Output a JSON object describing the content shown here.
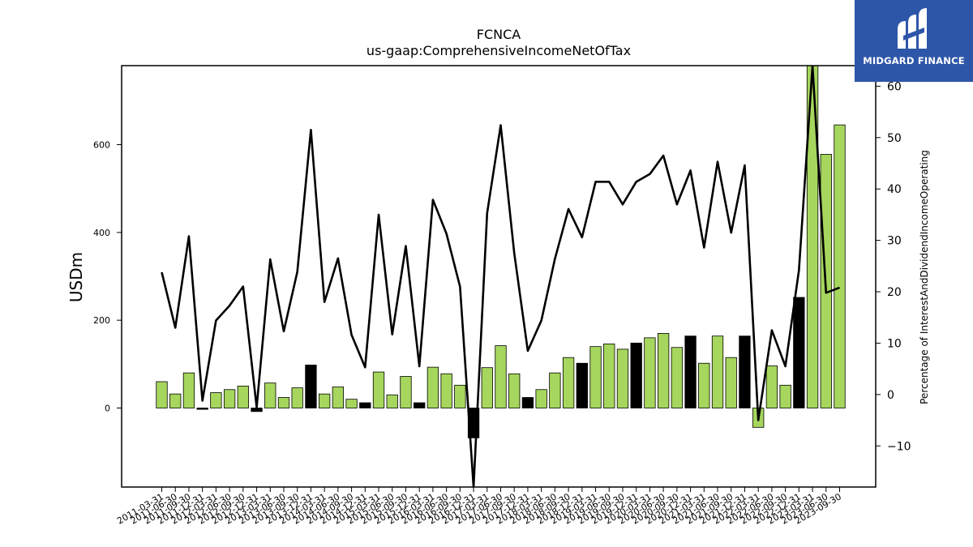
{
  "brand": {
    "name": "MIDGARD FINANCE",
    "color": "#2d56a8"
  },
  "chart_data": {
    "type": "bar",
    "title": "FCNCA",
    "subtitle": "us-gaap:ComprehensiveIncomeNetOfTax",
    "ylabel": "USDm",
    "y2label": "Percentage of InterestAndDividendIncomeOperating",
    "ylim": [
      -180,
      780
    ],
    "y2lim": [
      -18,
      64
    ],
    "yticks": [
      0,
      200,
      400,
      600
    ],
    "y2ticks": [
      -10,
      0,
      10,
      20,
      30,
      40,
      50,
      60
    ],
    "categories": [
      "2011-03-31",
      "2011-06-30",
      "2011-09-30",
      "2011-12-31",
      "2012-03-31",
      "2012-06-30",
      "2012-09-30",
      "2012-12-31",
      "2013-03-31",
      "2013-06-30",
      "2013-09-30",
      "2013-12-31",
      "2014-03-31",
      "2014-06-30",
      "2014-09-30",
      "2014-12-31",
      "2015-03-31",
      "2015-06-30",
      "2015-09-30",
      "2015-12-31",
      "2016-03-31",
      "2016-06-30",
      "2016-09-30",
      "2016-12-31",
      "2017-03-31",
      "2017-06-30",
      "2017-09-30",
      "2017-12-31",
      "2018-03-31",
      "2018-06-30",
      "2018-09-30",
      "2018-12-31",
      "2019-03-31",
      "2019-06-30",
      "2019-09-30",
      "2019-12-31",
      "2020-03-31",
      "2020-06-30",
      "2020-09-30",
      "2020-12-31",
      "2021-03-31",
      "2021-06-30",
      "2021-09-30",
      "2021-12-31",
      "2022-03-31",
      "2022-06-30",
      "2022-09-30",
      "2022-12-31",
      "2023-03-31",
      "2023-06-30",
      "2023-09-30"
    ],
    "series": [
      {
        "type": "bar",
        "axis": "left",
        "values": [
          60,
          32,
          80,
          -3,
          35,
          42,
          50,
          -8,
          57,
          24,
          46,
          98,
          32,
          48,
          20,
          12,
          82,
          30,
          72,
          12,
          93,
          78,
          52,
          -68,
          92,
          142,
          78,
          24,
          42,
          80,
          115,
          102,
          140,
          146,
          134,
          148,
          160,
          170,
          138,
          164,
          102,
          164,
          115,
          164,
          -44,
          96,
          52,
          252,
          780,
          578,
          645
        ],
        "highlight": [
          false,
          false,
          false,
          true,
          false,
          false,
          false,
          true,
          false,
          false,
          false,
          true,
          false,
          false,
          false,
          true,
          false,
          false,
          false,
          true,
          false,
          false,
          false,
          true,
          false,
          false,
          false,
          true,
          false,
          false,
          false,
          true,
          false,
          false,
          false,
          true,
          false,
          false,
          false,
          true,
          false,
          false,
          false,
          true,
          false,
          false,
          false,
          true,
          false,
          false,
          false
        ]
      },
      {
        "type": "line",
        "axis": "right",
        "values": [
          23.8,
          13,
          30.8,
          -1.2,
          14.4,
          17.3,
          21,
          -2.5,
          26.3,
          12.3,
          23.9,
          51.5,
          18,
          26.5,
          11.6,
          5.3,
          35,
          11.7,
          28.9,
          5.5,
          37.9,
          31.3,
          21,
          -18,
          35.3,
          52.4,
          27.5,
          8.5,
          14.4,
          26.4,
          36.1,
          30.6,
          41.4,
          41.4,
          37,
          41.4,
          42.9,
          46.5,
          37,
          43.6,
          28.6,
          45.3,
          31.5,
          44.6,
          -5,
          12.5,
          5.5,
          24.2,
          64,
          19.8,
          20.8
        ]
      }
    ],
    "colors": {
      "bar": "#a6d65d",
      "highlight": "#000000",
      "line": "#000000"
    },
    "grid": false
  }
}
